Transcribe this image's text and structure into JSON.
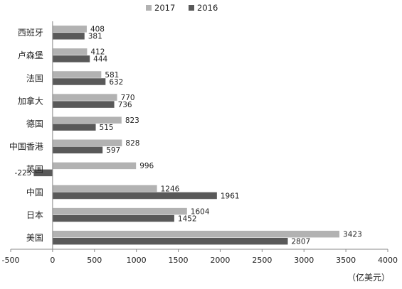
{
  "chart_data": {
    "type": "bar",
    "orientation": "horizontal",
    "categories": [
      "西班牙",
      "卢森堡",
      "法国",
      "加拿大",
      "德国",
      "中国香港",
      "英国",
      "中国",
      "日本",
      "美国"
    ],
    "series": [
      {
        "name": "2017",
        "color": "#b2b2b2",
        "values": [
          408,
          412,
          581,
          770,
          823,
          828,
          996,
          1246,
          1604,
          3423
        ]
      },
      {
        "name": "2016",
        "color": "#595959",
        "values": [
          381,
          444,
          632,
          736,
          515,
          597,
          -225,
          1961,
          1452,
          2807
        ]
      }
    ],
    "value_labels": [
      [
        "408",
        "412",
        "581",
        "770",
        "823",
        "828",
        "996",
        "1246",
        "1604",
        "3423"
      ],
      [
        "381",
        "444",
        "632",
        "736",
        "515",
        "597",
        "-225",
        "1961",
        "1452",
        "2807"
      ]
    ],
    "xlim": [
      -500,
      4000
    ],
    "xticks": [
      -500,
      0,
      500,
      1000,
      1500,
      2000,
      2500,
      3000,
      3500,
      4000
    ],
    "xtick_labels": [
      "-500",
      "0",
      "500",
      "1000",
      "1500",
      "2000",
      "2500",
      "3000",
      "3500",
      "4000"
    ],
    "unit": "（亿美元）",
    "legend": {
      "position": "top"
    },
    "grid": false
  }
}
